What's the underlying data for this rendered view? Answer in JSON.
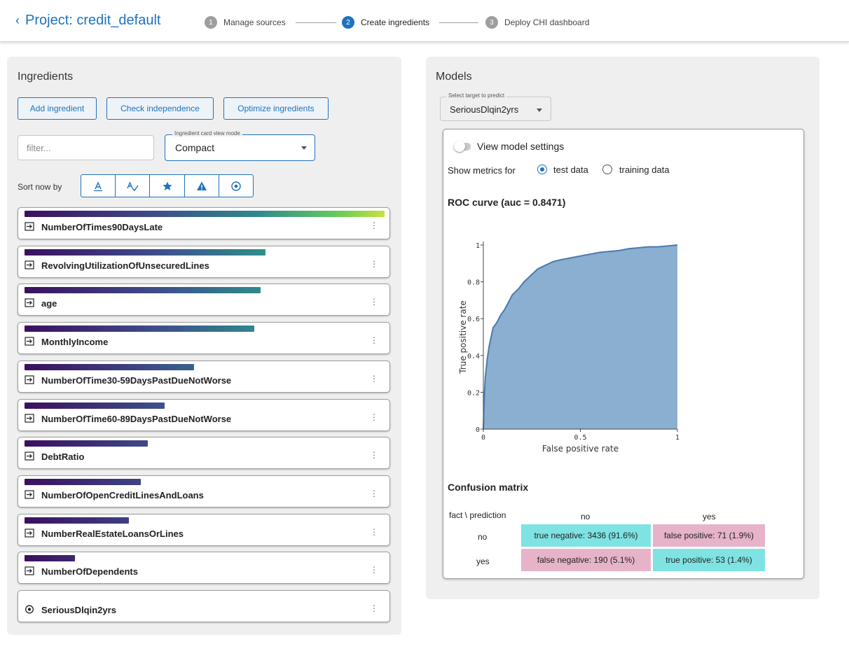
{
  "header": {
    "back_label": "Project: credit_default",
    "steps": [
      {
        "num": "1",
        "label": "Manage sources",
        "active": false
      },
      {
        "num": "2",
        "label": "Create ingredients",
        "active": true
      },
      {
        "num": "3",
        "label": "Deploy CHI dashboard",
        "active": false
      }
    ]
  },
  "ingredients": {
    "title": "Ingredients",
    "buttons": {
      "add": "Add ingredient",
      "check": "Check independence",
      "optimize": "Optimize ingredients"
    },
    "filter_placeholder": "filter...",
    "view_mode": {
      "legend": "Ingredient card view mode",
      "value": "Compact"
    },
    "sort_label": "Sort now by",
    "sort_buttons": [
      "sort-alpha-icon",
      "spellcheck-icon",
      "star-icon",
      "warning-icon",
      "target-icon"
    ],
    "cards": [
      {
        "name": "NumberOfTimes90DaysLate",
        "importance": 1.0,
        "icon": "input-icon"
      },
      {
        "name": "RevolvingUtilizationOfUnsecuredLines",
        "importance": 0.67,
        "icon": "input-icon"
      },
      {
        "name": "age",
        "importance": 0.655,
        "icon": "input-icon"
      },
      {
        "name": "MonthlyIncome",
        "importance": 0.638,
        "icon": "input-icon"
      },
      {
        "name": "NumberOfTime30-59DaysPastDueNotWorse",
        "importance": 0.47,
        "icon": "input-icon"
      },
      {
        "name": "NumberOfTime60-89DaysPastDueNotWorse",
        "importance": 0.39,
        "icon": "input-icon"
      },
      {
        "name": "DebtRatio",
        "importance": 0.343,
        "icon": "input-icon"
      },
      {
        "name": "NumberOfOpenCreditLinesAndLoans",
        "importance": 0.323,
        "icon": "input-icon"
      },
      {
        "name": "NumberRealEstateLoansOrLines",
        "importance": 0.29,
        "icon": "input-icon"
      },
      {
        "name": "NumberOfDependents",
        "importance": 0.14,
        "icon": "input-icon"
      },
      {
        "name": "SeriousDlqin2yrs",
        "importance": 0,
        "icon": "target-icon"
      }
    ]
  },
  "models": {
    "title": "Models",
    "target_select": {
      "legend": "Select target to predict",
      "value": "SeriousDlqin2yrs"
    },
    "view_settings_label": "View model settings",
    "show_metrics_label": "Show metrics for",
    "radio_test": "test data",
    "radio_training": "training data",
    "roc_title": "ROC curve (auc = 0.8471)",
    "confusion_title": "Confusion matrix",
    "cm": {
      "header_corner": "fact \\ prediction",
      "col_no": "no",
      "col_yes": "yes",
      "row_no": "no",
      "row_yes": "yes",
      "tn": "true negative: 3436 (91.6%)",
      "fp": "false positive: 71 (1.9%)",
      "fn": "false negative: 190 (5.1%)",
      "tp": "true positive: 53 (1.4%)"
    }
  },
  "chart_data": {
    "type": "area",
    "title": "",
    "xlabel": "False positive rate",
    "ylabel": "True positive rate",
    "xlim": [
      0,
      1
    ],
    "ylim": [
      0,
      1
    ],
    "x_ticks": [
      "0",
      "0.5",
      "1"
    ],
    "y_ticks": [
      "0",
      "0.2",
      "0.4",
      "0.6",
      "0.8",
      "1"
    ],
    "series": [
      {
        "x": [
          0,
          0.005,
          0.01,
          0.02,
          0.03,
          0.04,
          0.05,
          0.07,
          0.09,
          0.11,
          0.13,
          0.15,
          0.18,
          0.21,
          0.24,
          0.28,
          0.32,
          0.36,
          0.4,
          0.45,
          0.5,
          0.55,
          0.6,
          0.65,
          0.7,
          0.75,
          0.8,
          0.85,
          0.9,
          0.95,
          1.0
        ],
        "y": [
          0,
          0.18,
          0.28,
          0.38,
          0.45,
          0.5,
          0.55,
          0.58,
          0.62,
          0.65,
          0.69,
          0.73,
          0.76,
          0.8,
          0.83,
          0.87,
          0.89,
          0.91,
          0.92,
          0.93,
          0.94,
          0.95,
          0.96,
          0.965,
          0.97,
          0.98,
          0.985,
          0.99,
          0.99,
          0.995,
          1.0
        ]
      }
    ],
    "fill_color": "#8aafd0",
    "line_color": "#4a7bb0"
  }
}
